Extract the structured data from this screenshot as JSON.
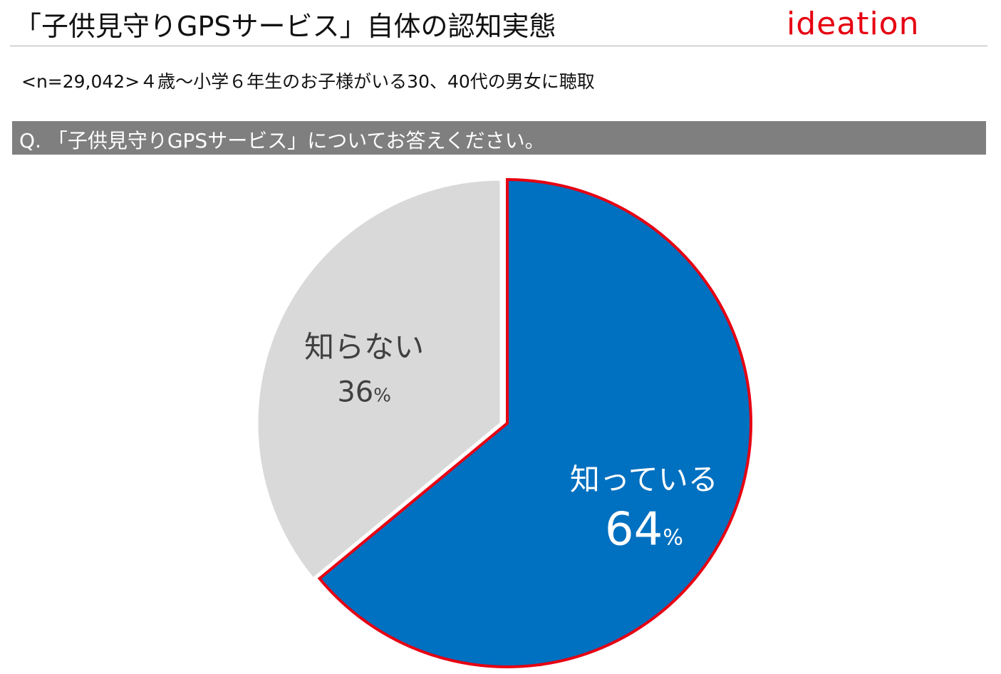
{
  "header": {
    "title": "「子供見守りGPSサービス」自体の認知実態",
    "logo": "ideation",
    "subtitle": "<n=29,042>４歳～小学６年生のお子様がいる30、40代の男女に聴取"
  },
  "question": "Q. 「子供見守りGPSサービス」についてお答えください。",
  "colors": {
    "known_fill": "#0070c0",
    "known_outline": "#e60012",
    "unknown_fill": "#d9d9d9",
    "logo": "#e60012",
    "question_bar": "#7f7f7f"
  },
  "chart_data": {
    "type": "pie",
    "slices": [
      {
        "label": "知っている",
        "value": 64,
        "display": "64",
        "unit": "%",
        "color": "#0070c0",
        "highlight": true
      },
      {
        "label": "知らない",
        "value": 36,
        "display": "36",
        "unit": "%",
        "color": "#d9d9d9",
        "highlight": false
      }
    ],
    "start": "12 o'clock",
    "direction": "clockwise"
  }
}
